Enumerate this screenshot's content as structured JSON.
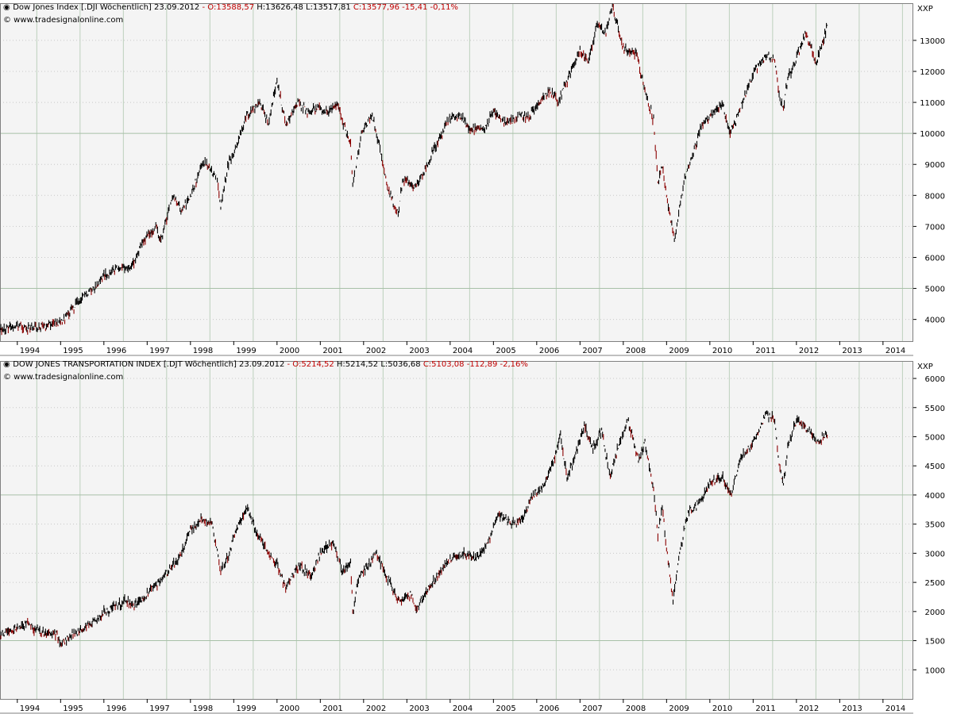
{
  "chart_data": [
    {
      "type": "line",
      "title": "Dow Jones Index [.DJI  Wöchentlich]",
      "date": "23.09.2012",
      "ohlc_text": "O:13588,57 H:13626,48 L:13517,81 C:13577,96 -15,41 -0,11%",
      "open_label": "O:13588,57",
      "high_label": "H:13626,48",
      "low_label": "L:13517,81",
      "close_label": "C:13577,96 -15,41 -0,11%",
      "source": "© www.tradesignalonline.com",
      "axis_unit": "XXP",
      "ylim": [
        3300,
        14200
      ],
      "yticks": [
        4000,
        5000,
        6000,
        7000,
        8000,
        9000,
        10000,
        11000,
        12000,
        13000
      ],
      "grid_major_y": [
        5000,
        10000
      ],
      "x_tick_labels": [
        "1994",
        "1995",
        "1996",
        "1997",
        "1998",
        "1999",
        "2000",
        "2001",
        "2002",
        "2003",
        "2004",
        "2005",
        "2006",
        "2007",
        "2008",
        "2009",
        "2010",
        "2011",
        "2012",
        "2013",
        "2014"
      ],
      "xlim": [
        1993.6,
        2014.7
      ],
      "series": [
        {
          "x": [
            1993.6,
            1994.0,
            1994.2,
            1994.5,
            1994.9,
            1995.0,
            1995.5,
            1995.9,
            1996.0,
            1996.4,
            1996.6,
            1996.9,
            1997.2,
            1997.3,
            1997.6,
            1997.8,
            1998.0,
            1998.3,
            1998.6,
            1998.7,
            1998.9,
            1999.0,
            1999.3,
            1999.6,
            1999.8,
            2000.0,
            2000.2,
            2000.5,
            2000.7,
            2000.9,
            2001.1,
            2001.4,
            2001.7,
            2001.75,
            2001.95,
            2002.2,
            2002.4,
            2002.55,
            2002.8,
            2002.9,
            2003.2,
            2003.4,
            2003.6,
            2003.95,
            2004.2,
            2004.5,
            2004.8,
            2005.0,
            2005.3,
            2005.6,
            2005.8,
            2006.0,
            2006.3,
            2006.5,
            2006.8,
            2007.0,
            2007.2,
            2007.4,
            2007.6,
            2007.75,
            2008.0,
            2008.3,
            2008.5,
            2008.7,
            2008.8,
            2008.9,
            2009.0,
            2009.1,
            2009.18,
            2009.4,
            2009.6,
            2009.8,
            2010.0,
            2010.3,
            2010.45,
            2010.6,
            2010.75,
            2011.0,
            2011.3,
            2011.5,
            2011.6,
            2011.7,
            2011.8,
            2011.95,
            2012.2,
            2012.35,
            2012.45,
            2012.6,
            2012.73
          ],
          "y": [
            3650,
            3800,
            3700,
            3750,
            3850,
            3900,
            4700,
            5200,
            5400,
            5700,
            5600,
            6500,
            7000,
            6500,
            8000,
            7500,
            8000,
            9100,
            8600,
            7600,
            9200,
            9300,
            10600,
            11000,
            10300,
            11700,
            10300,
            11000,
            10700,
            10800,
            10700,
            10900,
            9600,
            8300,
            10000,
            10600,
            9400,
            8200,
            7400,
            8500,
            8300,
            8800,
            9400,
            10400,
            10600,
            10100,
            10200,
            10700,
            10300,
            10600,
            10500,
            10900,
            11400,
            11000,
            12000,
            12700,
            12300,
            13600,
            13200,
            14100,
            12700,
            12600,
            11400,
            10400,
            8500,
            8900,
            8000,
            7200,
            6500,
            8500,
            9300,
            10200,
            10600,
            10900,
            10000,
            10400,
            11000,
            11900,
            12500,
            12400,
            11200,
            10800,
            11800,
            12200,
            13200,
            12800,
            12200,
            12900,
            13580
          ]
        }
      ],
      "down_color": "#8b0000",
      "line_color": "#000000"
    },
    {
      "type": "line",
      "title": "DOW JONES TRANSPORTATION INDEX [.DJT  Wöchentlich]",
      "date": "23.09.2012",
      "ohlc_text": "O:5214,52 H:5214,52 L:5036,68 C:5103,08 -112,89 -2,16%",
      "open_label": "O:5214,52",
      "high_label": "H:5214,52",
      "low_label": "L:5036,68",
      "close_label": "C:5103,08 -112,89 -2,16%",
      "source": "© www.tradesignalonline.com",
      "axis_unit": "XXP",
      "ylim": [
        500,
        6300
      ],
      "yticks": [
        1000,
        1500,
        2000,
        2500,
        3000,
        3500,
        4000,
        4500,
        5000,
        5500,
        6000
      ],
      "grid_major_y": [
        1500,
        4000
      ],
      "x_tick_labels": [
        "1994",
        "1995",
        "1996",
        "1997",
        "1998",
        "1999",
        "2000",
        "2001",
        "2002",
        "2003",
        "2004",
        "2005",
        "2006",
        "2007",
        "2008",
        "2009",
        "2010",
        "2011",
        "2012",
        "2013",
        "2014"
      ],
      "xlim": [
        1993.6,
        2014.7
      ],
      "series": [
        {
          "x": [
            1993.6,
            1994.0,
            1994.2,
            1994.5,
            1994.9,
            1995.0,
            1995.5,
            1995.9,
            1996.0,
            1996.3,
            1996.5,
            1996.7,
            1997.0,
            1997.5,
            1997.8,
            1998.0,
            1998.3,
            1998.5,
            1998.7,
            1998.9,
            1999.0,
            1999.3,
            1999.5,
            1999.8,
            2000.0,
            2000.2,
            2000.5,
            2000.8,
            2001.0,
            2001.3,
            2001.5,
            2001.7,
            2001.75,
            2001.9,
            2002.3,
            2002.6,
            2002.8,
            2003.1,
            2003.2,
            2003.5,
            2003.8,
            2004.0,
            2004.3,
            2004.6,
            2004.9,
            2005.1,
            2005.4,
            2005.7,
            2005.9,
            2006.1,
            2006.4,
            2006.55,
            2006.7,
            2006.9,
            2007.1,
            2007.3,
            2007.5,
            2007.7,
            2007.9,
            2008.1,
            2008.35,
            2008.5,
            2008.7,
            2008.8,
            2008.9,
            2009.0,
            2009.15,
            2009.3,
            2009.5,
            2009.8,
            2010.0,
            2010.3,
            2010.5,
            2010.7,
            2011.0,
            2011.3,
            2011.5,
            2011.6,
            2011.7,
            2011.8,
            2012.0,
            2012.3,
            2012.5,
            2012.73
          ],
          "y": [
            1600,
            1700,
            1800,
            1650,
            1600,
            1450,
            1700,
            1900,
            2000,
            2100,
            2200,
            2100,
            2300,
            2700,
            3000,
            3400,
            3600,
            3500,
            2700,
            3000,
            3300,
            3800,
            3400,
            3000,
            2800,
            2400,
            2800,
            2600,
            3000,
            3200,
            2700,
            2800,
            2000,
            2600,
            3000,
            2500,
            2200,
            2300,
            2000,
            2400,
            2700,
            2900,
            3000,
            2900,
            3200,
            3700,
            3500,
            3600,
            4000,
            4100,
            4600,
            5000,
            4300,
            4700,
            5200,
            4800,
            5100,
            4300,
            4900,
            5300,
            4600,
            4900,
            4100,
            3300,
            3800,
            3100,
            2200,
            3000,
            3700,
            3900,
            4200,
            4300,
            4000,
            4600,
            4900,
            5400,
            5300,
            4500,
            4200,
            4800,
            5300,
            5100,
            4900,
            5100
          ]
        }
      ],
      "down_color": "#8b0000",
      "line_color": "#000000"
    }
  ]
}
